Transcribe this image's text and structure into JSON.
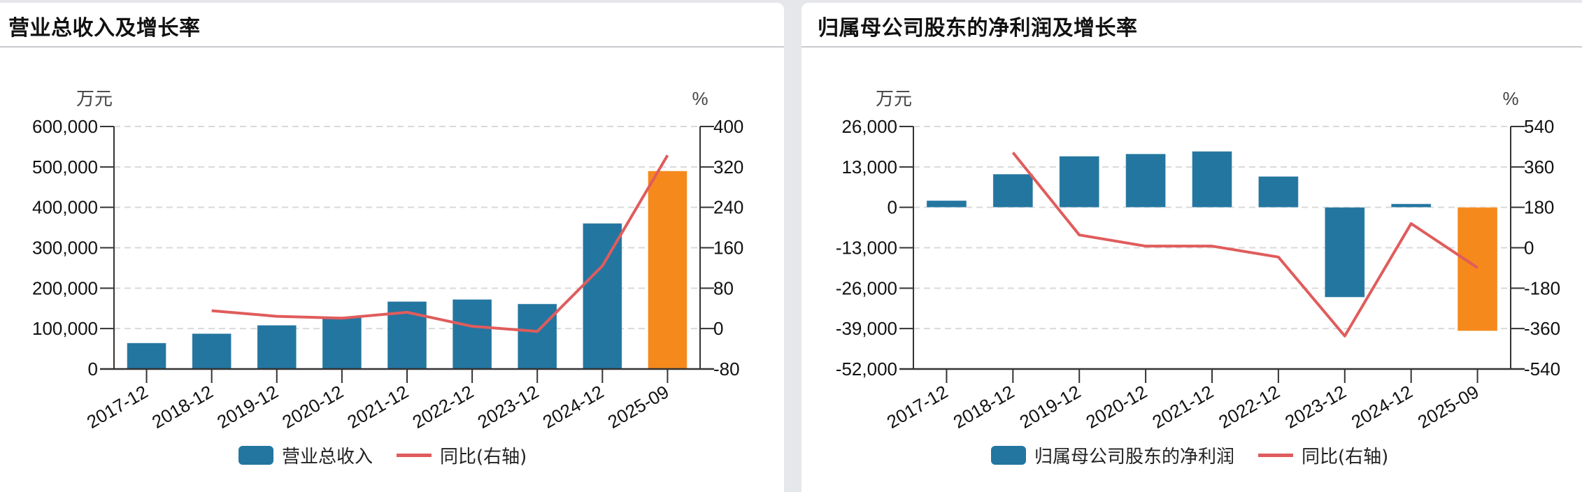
{
  "colors": {
    "bar": "#2376a0",
    "bar_highlight": "#f5891c",
    "line": "#e05c5c",
    "axis": "#333333",
    "grid": "#d9d9d9",
    "panel_bg": "#ffffff",
    "page_bg": "#e6e7ea"
  },
  "panels": [
    {
      "title": "营业总收入及增长率",
      "left_unit": "万元",
      "right_unit": "%",
      "legend": {
        "bar_label": "营业总收入",
        "line_label": "同比(右轴)"
      }
    },
    {
      "title": "归属母公司股东的净利润及增长率",
      "left_unit": "万元",
      "right_unit": "%",
      "legend": {
        "bar_label": "归属母公司股东的净利润",
        "line_label": "同比(右轴)"
      }
    }
  ],
  "chart_data": [
    {
      "type": "bar",
      "title": "营业总收入及增长率",
      "categories": [
        "2017-12",
        "2018-12",
        "2019-12",
        "2020-12",
        "2021-12",
        "2022-12",
        "2023-12",
        "2024-12",
        "2025-09"
      ],
      "series": [
        {
          "name": "营业总收入",
          "type": "bar",
          "axis": "left",
          "unit": "万元",
          "values": [
            64400,
            87600,
            108300,
            127800,
            167000,
            172200,
            161100,
            360400,
            490000
          ],
          "highlight_last": true
        },
        {
          "name": "同比(右轴)",
          "type": "line",
          "axis": "right",
          "unit": "%",
          "values": [
            null,
            35.4,
            24.3,
            20.6,
            32.2,
            4.5,
            -5.6,
            124.2,
            343.0
          ]
        }
      ],
      "left_axis": {
        "label": "万元",
        "ylim": [
          0,
          600000
        ],
        "ticks": [
          0,
          100000,
          200000,
          300000,
          400000,
          500000,
          600000
        ],
        "tick_labels": [
          "0",
          "100,000",
          "200,000",
          "300,000",
          "400,000",
          "500,000",
          "600,000"
        ]
      },
      "right_axis": {
        "label": "%",
        "ylim": [
          -80,
          400
        ],
        "ticks": [
          -80,
          0,
          80,
          160,
          240,
          320,
          400
        ],
        "tick_labels": [
          "-80",
          "0",
          "80",
          "160",
          "240",
          "320",
          "400"
        ]
      },
      "grid": true,
      "legend_position": "bottom",
      "xlabel": "",
      "ylabel": "万元"
    },
    {
      "type": "bar",
      "title": "归属母公司股东的净利润及增长率",
      "categories": [
        "2017-12",
        "2018-12",
        "2019-12",
        "2020-12",
        "2021-12",
        "2022-12",
        "2023-12",
        "2024-12",
        "2025-09"
      ],
      "series": [
        {
          "name": "归属母公司股东的净利润",
          "type": "bar",
          "axis": "left",
          "unit": "万元",
          "values": [
            2170,
            10680,
            16440,
            17180,
            18010,
            9940,
            -28910,
            1120,
            -39750
          ],
          "highlight_last": true
        },
        {
          "name": "同比(右轴)",
          "type": "line",
          "axis": "right",
          "unit": "%",
          "values": [
            null,
            424.0,
            57.0,
            7.2,
            7.2,
            -41.4,
            -393.0,
            107.6,
            -89.0
          ]
        }
      ],
      "left_axis": {
        "label": "万元",
        "ylim": [
          -52000,
          26000
        ],
        "ticks": [
          -52000,
          -39000,
          -26000,
          -13000,
          0,
          13000,
          26000
        ],
        "tick_labels": [
          "-52,000",
          "-39,000",
          "-26,000",
          "-13,000",
          "0",
          "13,000",
          "26,000"
        ]
      },
      "right_axis": {
        "label": "%",
        "ylim": [
          -540,
          540
        ],
        "ticks": [
          -540,
          -360,
          -180,
          0,
          180,
          360,
          540
        ],
        "tick_labels": [
          "-540",
          "-360",
          "-180",
          "0",
          "180",
          "360",
          "540"
        ]
      },
      "grid": true,
      "legend_position": "bottom",
      "xlabel": "",
      "ylabel": "万元"
    }
  ]
}
